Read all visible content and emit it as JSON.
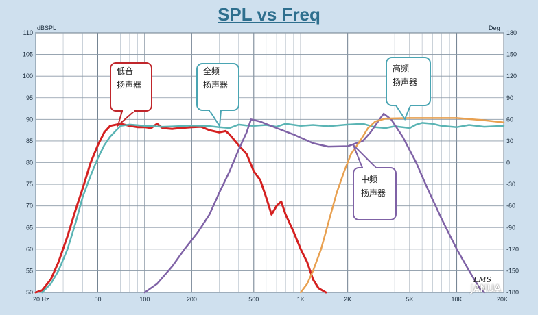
{
  "chart_data": {
    "type": "line",
    "title": "SPL vs Freq",
    "xscale": "log",
    "xlim": [
      20,
      20000
    ],
    "ylim": [
      50,
      110
    ],
    "y2lim": [
      -180,
      180
    ],
    "ylabel": "dBSPL",
    "y2label": "Deg",
    "grid": true,
    "xticks": [
      {
        "v": 20,
        "label": "20  Hz"
      },
      {
        "v": 50,
        "label": "50"
      },
      {
        "v": 100,
        "label": "100"
      },
      {
        "v": 200,
        "label": "200"
      },
      {
        "v": 500,
        "label": "500"
      },
      {
        "v": 1000,
        "label": "1K"
      },
      {
        "v": 2000,
        "label": "2K"
      },
      {
        "v": 5000,
        "label": "5K"
      },
      {
        "v": 10000,
        "label": "10K"
      },
      {
        "v": 20000,
        "label": "20K"
      }
    ],
    "yticks": [
      "50",
      "55",
      "60",
      "65",
      "70",
      "75",
      "80",
      "85",
      "90",
      "95",
      "100",
      "105",
      "110"
    ],
    "y2ticks": [
      "-180",
      "-150",
      "-120",
      "-90",
      "-60",
      "-30",
      "0",
      "30",
      "60",
      "90",
      "120",
      "150",
      "180"
    ],
    "series": [
      {
        "name": "低音扬声器",
        "color": "#d42020",
        "points": [
          [
            20,
            50
          ],
          [
            22,
            50.5
          ],
          [
            25,
            53
          ],
          [
            28,
            57
          ],
          [
            32,
            63
          ],
          [
            36,
            69
          ],
          [
            40,
            74
          ],
          [
            45,
            80
          ],
          [
            50,
            84
          ],
          [
            55,
            87
          ],
          [
            60,
            88.5
          ],
          [
            70,
            89
          ],
          [
            80,
            88.5
          ],
          [
            90,
            88.2
          ],
          [
            100,
            88.2
          ],
          [
            110,
            88
          ],
          [
            120,
            89
          ],
          [
            130,
            88
          ],
          [
            150,
            87.8
          ],
          [
            170,
            88
          ],
          [
            200,
            88.2
          ],
          [
            230,
            88.3
          ],
          [
            260,
            87.5
          ],
          [
            300,
            87
          ],
          [
            330,
            87.3
          ],
          [
            350,
            86.5
          ],
          [
            400,
            84
          ],
          [
            450,
            82
          ],
          [
            500,
            78
          ],
          [
            550,
            76
          ],
          [
            600,
            72
          ],
          [
            650,
            68
          ],
          [
            700,
            70
          ],
          [
            750,
            71
          ],
          [
            800,
            68
          ],
          [
            900,
            64
          ],
          [
            1000,
            60
          ],
          [
            1100,
            57
          ],
          [
            1200,
            53
          ],
          [
            1300,
            51
          ],
          [
            1450,
            50
          ]
        ]
      },
      {
        "name": "全频扬声器",
        "color": "#5ab4b4",
        "points": [
          [
            22,
            50
          ],
          [
            25,
            52
          ],
          [
            28,
            55
          ],
          [
            32,
            60
          ],
          [
            36,
            66
          ],
          [
            40,
            72
          ],
          [
            45,
            77
          ],
          [
            50,
            81
          ],
          [
            55,
            84
          ],
          [
            60,
            86
          ],
          [
            70,
            88.5
          ],
          [
            80,
            88.8
          ],
          [
            100,
            88.5
          ],
          [
            130,
            88.3
          ],
          [
            160,
            88.4
          ],
          [
            200,
            88.6
          ],
          [
            250,
            88.5
          ],
          [
            300,
            88.2
          ],
          [
            350,
            88
          ],
          [
            400,
            88.8
          ],
          [
            450,
            88.6
          ],
          [
            500,
            88.5
          ],
          [
            600,
            88.7
          ],
          [
            700,
            88.3
          ],
          [
            800,
            89
          ],
          [
            1000,
            88.5
          ],
          [
            1200,
            88.7
          ],
          [
            1500,
            88.4
          ],
          [
            2000,
            88.8
          ],
          [
            2500,
            89
          ],
          [
            3000,
            88.2
          ],
          [
            3500,
            88
          ],
          [
            4000,
            88.4
          ],
          [
            5000,
            88
          ],
          [
            5500,
            88.8
          ],
          [
            6000,
            89.2
          ],
          [
            7000,
            89
          ],
          [
            8000,
            88.5
          ],
          [
            10000,
            88.2
          ],
          [
            12000,
            88.7
          ],
          [
            15000,
            88.3
          ],
          [
            20000,
            88.5
          ]
        ]
      },
      {
        "name": "中频扬声器",
        "color": "#7f62a6",
        "points": [
          [
            100,
            50
          ],
          [
            120,
            52
          ],
          [
            150,
            56
          ],
          [
            180,
            60
          ],
          [
            220,
            64
          ],
          [
            260,
            68
          ],
          [
            300,
            73
          ],
          [
            350,
            78
          ],
          [
            400,
            83
          ],
          [
            450,
            87
          ],
          [
            480,
            90
          ],
          [
            550,
            89.5
          ],
          [
            700,
            88
          ],
          [
            900,
            86.5
          ],
          [
            1200,
            84.5
          ],
          [
            1500,
            83.7
          ],
          [
            2000,
            83.8
          ],
          [
            2500,
            85
          ],
          [
            2800,
            87
          ],
          [
            3200,
            90
          ],
          [
            3400,
            91.3
          ],
          [
            3800,
            90
          ],
          [
            4500,
            86
          ],
          [
            5500,
            80
          ],
          [
            6500,
            74
          ],
          [
            8000,
            67
          ],
          [
            10000,
            60
          ],
          [
            12000,
            55
          ],
          [
            14000,
            51
          ],
          [
            15000,
            50
          ]
        ]
      },
      {
        "name": "高频扬声器",
        "color": "#e8a050",
        "points": [
          [
            1000,
            50
          ],
          [
            1100,
            52
          ],
          [
            1200,
            55
          ],
          [
            1350,
            60
          ],
          [
            1500,
            66
          ],
          [
            1700,
            73
          ],
          [
            1900,
            78
          ],
          [
            2100,
            82
          ],
          [
            2400,
            85
          ],
          [
            2700,
            88
          ],
          [
            3000,
            89.5
          ],
          [
            3500,
            90.2
          ],
          [
            5000,
            90.3
          ],
          [
            10000,
            90.3
          ],
          [
            15000,
            89.8
          ],
          [
            20000,
            89.3
          ]
        ]
      }
    ],
    "annotations": [
      {
        "id": "low",
        "lines": [
          "低音",
          "扬声器"
        ],
        "color": "#c0262b"
      },
      {
        "id": "full",
        "lines": [
          "全频",
          "扬声器"
        ],
        "color": "#4aa5b3"
      },
      {
        "id": "high",
        "lines": [
          "高频",
          "扬声器"
        ],
        "color": "#4aa5b3"
      },
      {
        "id": "mid",
        "lines": [
          "中频",
          "扬声器"
        ],
        "color": "#7f62a6"
      }
    ]
  },
  "watermark": {
    "text": "JANUA",
    "logo": "LMS"
  }
}
